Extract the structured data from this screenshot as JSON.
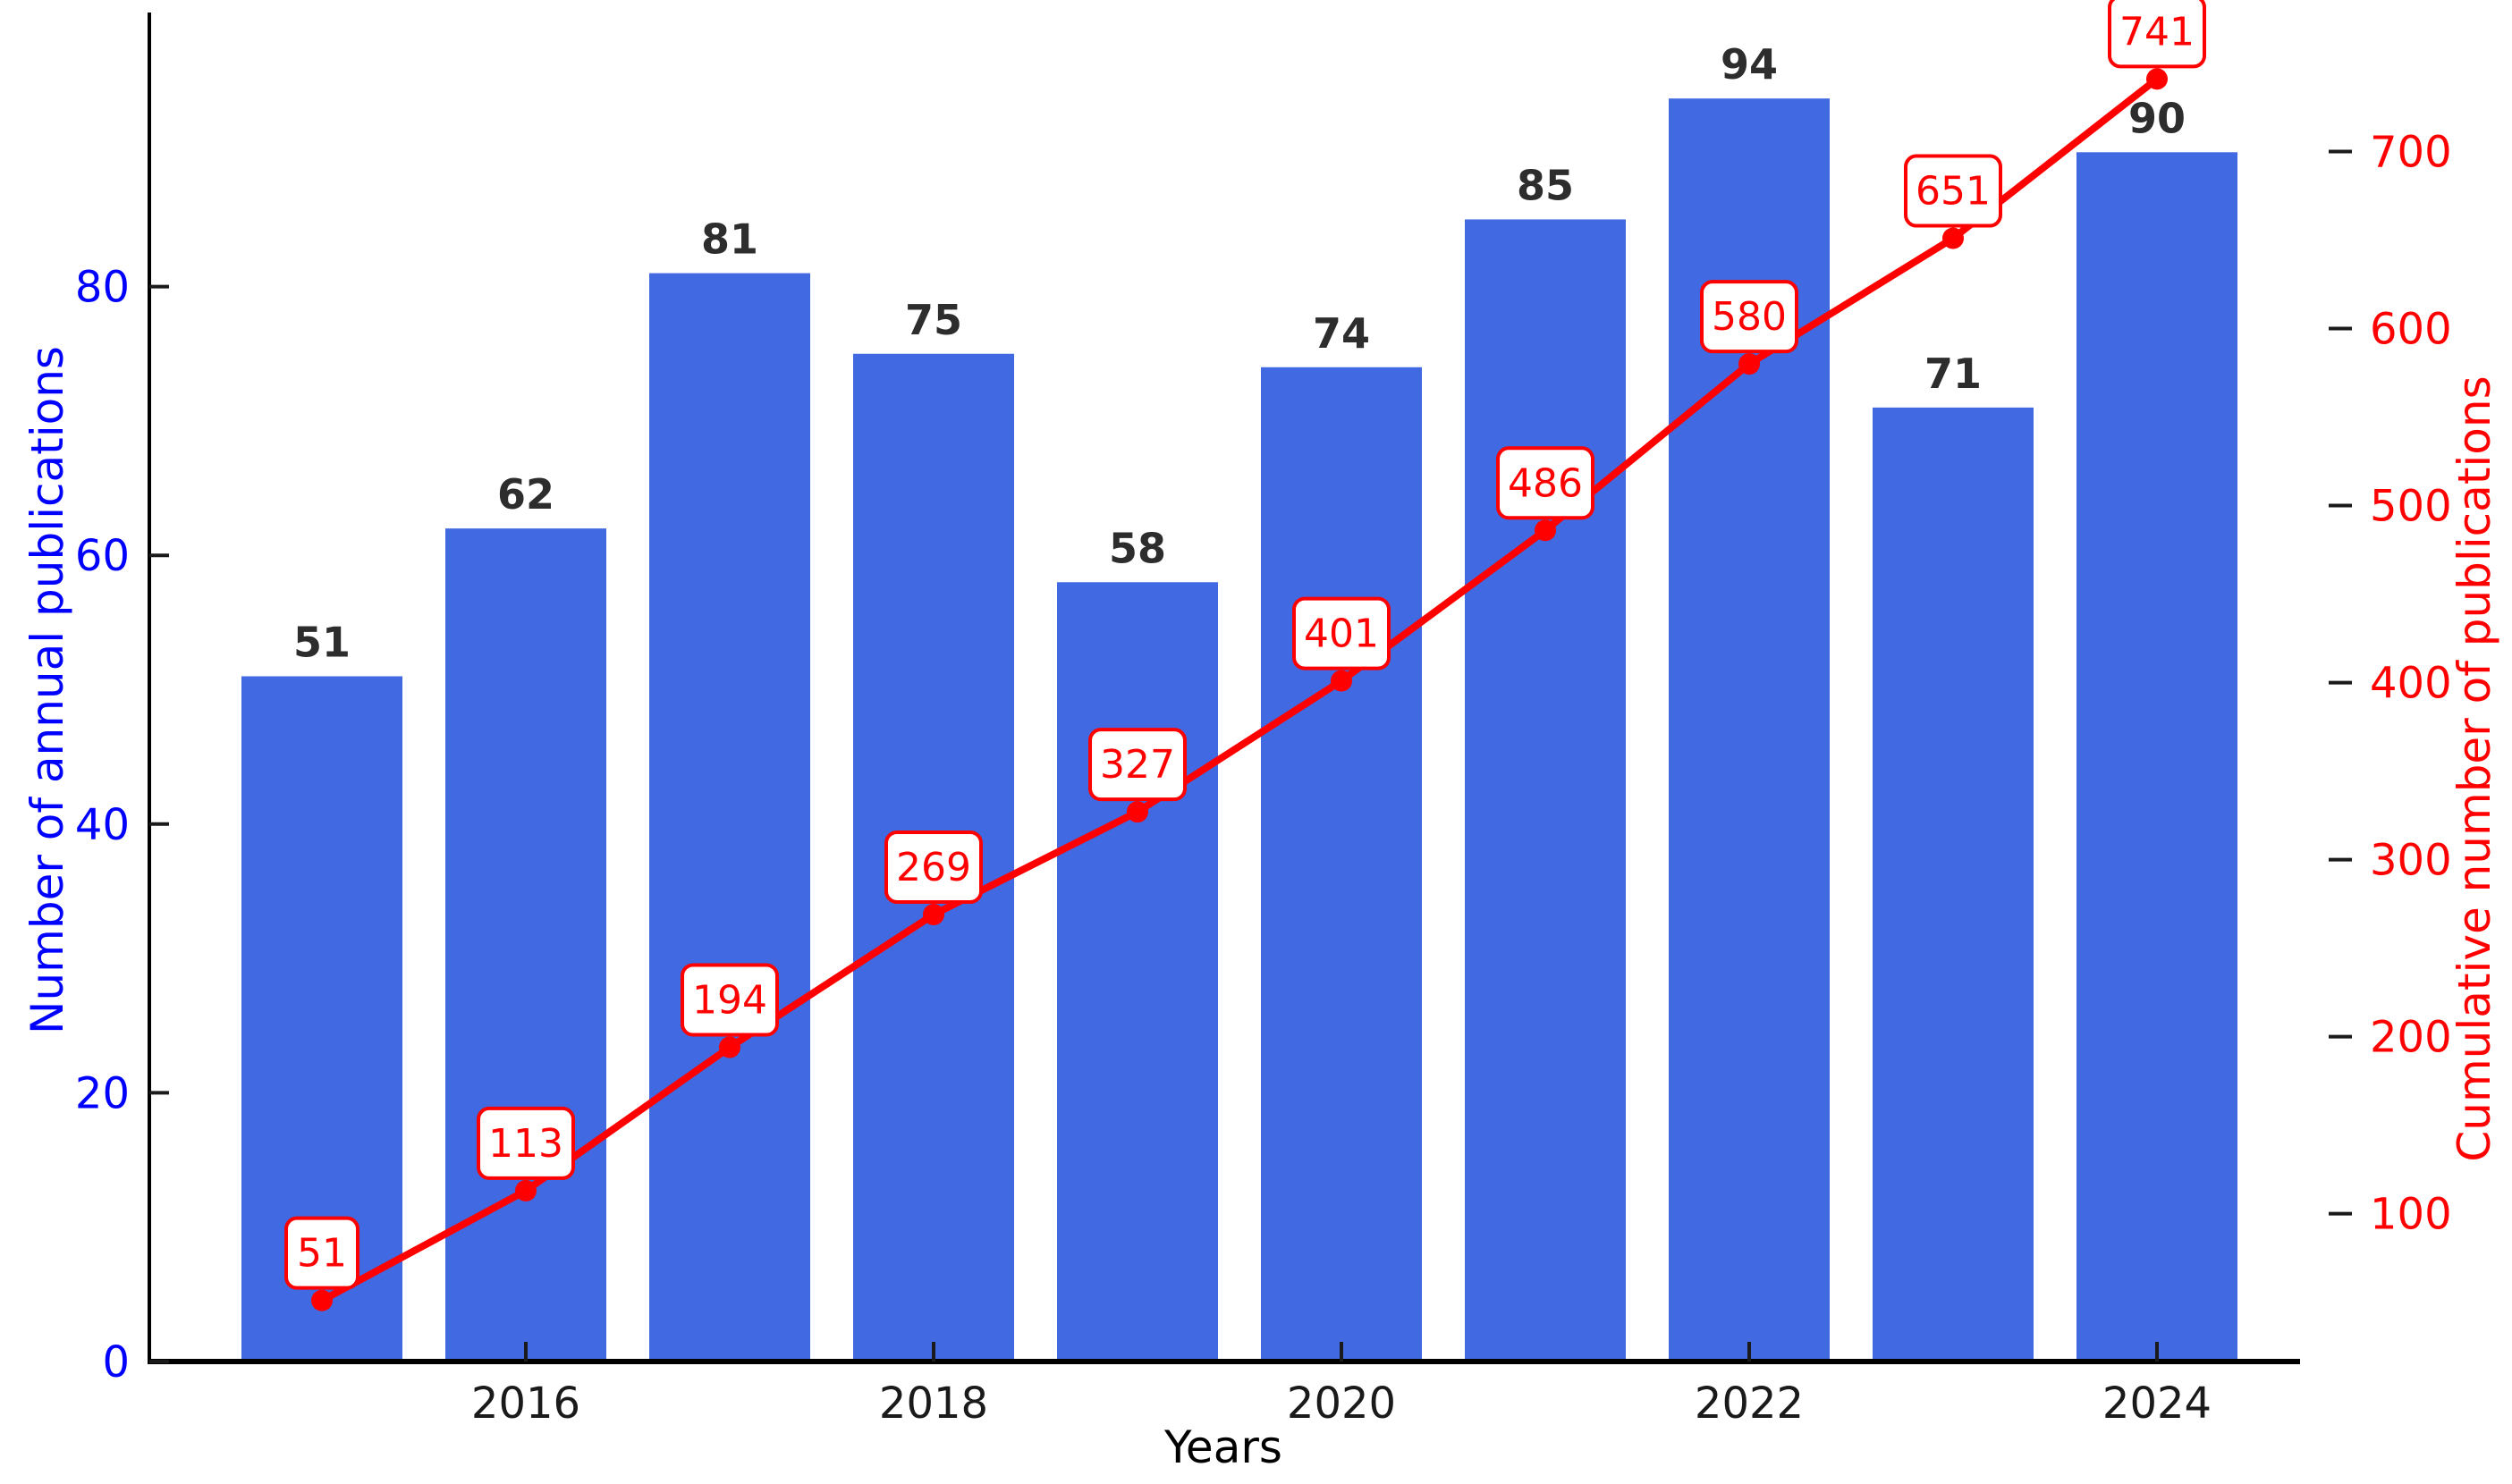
{
  "figure": {
    "background": "#FFFFFF",
    "xlabel": "Years",
    "left_axis": {
      "label": "Number of annual publications",
      "label_color": "#0000FF",
      "tick_label_color": "#0000FF",
      "ticks": [
        0,
        20,
        40,
        60,
        80
      ],
      "limits": [
        0,
        100
      ]
    },
    "right_axis": {
      "label": "Cumulative number of publications",
      "label_color": "#FF0000",
      "tick_label_color": "#FF0000",
      "ticks": [
        100,
        200,
        300,
        400,
        500,
        600,
        700
      ],
      "limits": [
        16.5,
        775.5
      ]
    },
    "x_axis": {
      "label_color": "#000000",
      "ticks": [
        2016,
        2018,
        2020,
        2022,
        2024
      ]
    },
    "colors": {
      "bar_fill": "#4169E1",
      "bar_value_label": "#2d2d2d",
      "line": "#FF0000",
      "marker": "#FF0000",
      "annotation_text": "#FF0000",
      "annotation_box_fill": "#FFFFFF",
      "annotation_box_border": "#FF0000",
      "spine": "#000000",
      "tick_mark": "#1a1a1a",
      "x_tick_label": "#1a1a1a"
    }
  },
  "chart_data": {
    "type": "bar",
    "title": "",
    "xlabel": "Years",
    "ylabel_left": "Number of annual publications",
    "ylabel_right": "Cumulative number of publications",
    "categories": [
      2015,
      2016,
      2017,
      2018,
      2019,
      2020,
      2021,
      2022,
      2023,
      2024
    ],
    "series": [
      {
        "name": "Number of annual publications",
        "type": "bar",
        "axis": "left",
        "color": "#4169E1",
        "values": [
          51,
          62,
          81,
          75,
          58,
          74,
          85,
          94,
          71,
          90
        ],
        "value_labels": true
      },
      {
        "name": "Cumulative number of publications",
        "type": "line",
        "axis": "right",
        "color": "#FF0000",
        "values": [
          51,
          113,
          194,
          269,
          327,
          401,
          486,
          580,
          651,
          741
        ],
        "point_labels": true,
        "marker": "circle"
      }
    ],
    "x_ticks": [
      2016,
      2018,
      2020,
      2022,
      2024
    ],
    "left_ticks": [
      0,
      20,
      40,
      60,
      80
    ],
    "right_ticks": [
      100,
      200,
      300,
      400,
      500,
      600,
      700
    ],
    "ylim_left": [
      0,
      100
    ],
    "ylim_right": [
      16.5,
      775.5
    ],
    "grid": false,
    "legend_position": "none"
  }
}
